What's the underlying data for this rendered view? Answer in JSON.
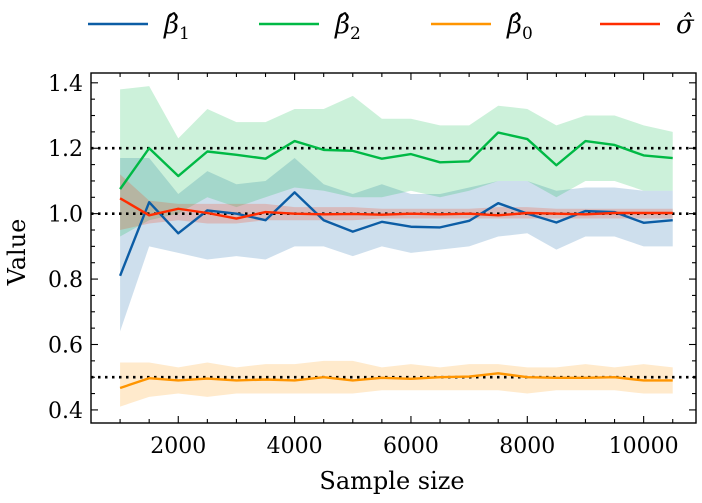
{
  "chart_data": {
    "type": "line",
    "xlabel": "Sample size",
    "ylabel": "Value",
    "xlim": [
      500,
      10900
    ],
    "ylim": [
      0.36,
      1.43
    ],
    "x_ticks": [
      2000,
      4000,
      6000,
      8000,
      10000
    ],
    "y_ticks": [
      0.4,
      0.6,
      0.8,
      1.0,
      1.2,
      1.4
    ],
    "x_tick_labels": [
      "2000",
      "4000",
      "6000",
      "8000",
      "10000"
    ],
    "y_tick_labels": [
      "0.4",
      "0.6",
      "0.8",
      "1.0",
      "1.2",
      "1.4"
    ],
    "legend_position": "top",
    "reference_lines": [
      1.2,
      1.0,
      0.5
    ],
    "x": [
      1000,
      1500,
      2000,
      2500,
      3000,
      3500,
      4000,
      4500,
      5000,
      5500,
      6000,
      6500,
      7000,
      7500,
      8000,
      8500,
      9000,
      9500,
      10000,
      10500
    ],
    "series": [
      {
        "name": "β̂",
        "legend_main": "β̂",
        "legend_sub": "1",
        "color": "#0C5DA5",
        "values": [
          0.81,
          1.035,
          0.94,
          1.01,
          1.0,
          0.98,
          1.065,
          0.98,
          0.945,
          0.975,
          0.96,
          0.958,
          0.978,
          1.032,
          1.0,
          0.973,
          1.008,
          1.005,
          0.972,
          0.98
        ],
        "lower": [
          0.64,
          0.9,
          0.88,
          0.86,
          0.87,
          0.86,
          0.9,
          0.9,
          0.87,
          0.9,
          0.88,
          0.89,
          0.9,
          0.93,
          0.94,
          0.89,
          0.93,
          0.93,
          0.9,
          0.9
        ],
        "upper": [
          1.17,
          1.17,
          1.06,
          1.13,
          1.09,
          1.1,
          1.17,
          1.09,
          1.06,
          1.09,
          1.06,
          1.06,
          1.08,
          1.1,
          1.1,
          1.07,
          1.08,
          1.08,
          1.07,
          1.07
        ]
      },
      {
        "name": "β̂",
        "legend_main": "β̂",
        "legend_sub": "2",
        "color": "#00B945",
        "values": [
          1.075,
          1.2,
          1.115,
          1.19,
          1.18,
          1.168,
          1.222,
          1.195,
          1.192,
          1.168,
          1.182,
          1.157,
          1.16,
          1.248,
          1.228,
          1.148,
          1.222,
          1.21,
          1.178,
          1.17
        ],
        "lower": [
          0.93,
          0.98,
          1.0,
          1.05,
          1.02,
          1.05,
          1.08,
          1.07,
          1.05,
          1.05,
          1.07,
          1.05,
          1.07,
          1.1,
          1.1,
          1.05,
          1.1,
          1.1,
          1.07,
          1.07
        ],
        "upper": [
          1.38,
          1.39,
          1.23,
          1.32,
          1.28,
          1.28,
          1.32,
          1.32,
          1.36,
          1.29,
          1.29,
          1.27,
          1.27,
          1.33,
          1.32,
          1.27,
          1.3,
          1.3,
          1.27,
          1.25
        ]
      },
      {
        "name": "β̂",
        "legend_main": "β̂",
        "legend_sub": "0",
        "color": "#FF9500",
        "values": [
          0.467,
          0.497,
          0.49,
          0.496,
          0.49,
          0.493,
          0.49,
          0.5,
          0.49,
          0.498,
          0.495,
          0.5,
          0.502,
          0.512,
          0.5,
          0.498,
          0.498,
          0.5,
          0.49,
          0.49
        ],
        "lower": [
          0.41,
          0.44,
          0.45,
          0.44,
          0.45,
          0.45,
          0.45,
          0.45,
          0.45,
          0.46,
          0.46,
          0.46,
          0.46,
          0.46,
          0.45,
          0.46,
          0.46,
          0.46,
          0.45,
          0.45
        ],
        "upper": [
          0.545,
          0.545,
          0.53,
          0.545,
          0.53,
          0.54,
          0.54,
          0.55,
          0.55,
          0.53,
          0.54,
          0.53,
          0.54,
          0.54,
          0.53,
          0.53,
          0.54,
          0.53,
          0.54,
          0.53
        ]
      },
      {
        "name": "σ̂",
        "legend_main": "σ̂",
        "legend_sub": "",
        "color": "#FF2C00",
        "values": [
          1.047,
          0.995,
          1.015,
          1.002,
          0.985,
          1.005,
          1.0,
          0.998,
          0.999,
          0.997,
          1.0,
          0.998,
          1.0,
          0.995,
          1.002,
          1.0,
          0.998,
          1.002,
          1.002,
          1.002
        ],
        "lower": [
          0.95,
          0.97,
          0.98,
          0.97,
          0.97,
          0.98,
          0.98,
          0.98,
          0.98,
          0.985,
          0.985,
          0.985,
          0.985,
          0.985,
          0.985,
          0.985,
          0.985,
          0.985,
          0.985,
          0.985
        ],
        "upper": [
          1.12,
          1.04,
          1.03,
          1.03,
          1.03,
          1.03,
          1.02,
          1.02,
          1.02,
          1.015,
          1.015,
          1.015,
          1.015,
          1.02,
          1.02,
          1.015,
          1.015,
          1.015,
          1.015,
          1.015
        ]
      }
    ]
  }
}
